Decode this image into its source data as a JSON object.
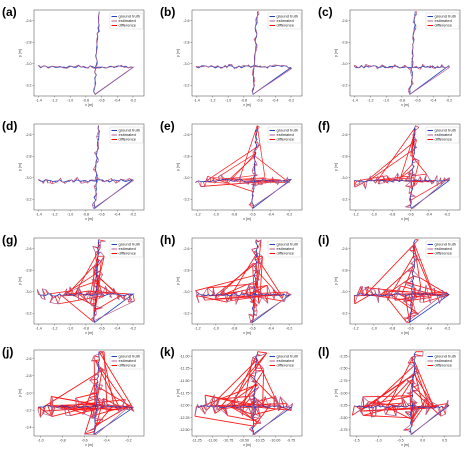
{
  "chart_data": [
    {
      "panel": "(a)",
      "type": "line",
      "title": "",
      "xlabel": "x [m]",
      "ylabel": "y [m]",
      "xticks": [
        "-1.4",
        "-1.2",
        "-1.0",
        "-0.8",
        "-0.6",
        "-0.4",
        "-0.2"
      ],
      "yticks": [
        "-2.6",
        "-2.8",
        "-3.0",
        "-3.2"
      ],
      "xlim": [
        -1.45,
        -0.15
      ],
      "ylim": [
        -3.25,
        -2.5
      ],
      "legend": "top-right",
      "diff_amount": 0.1,
      "series": [
        {
          "name": "ground truth",
          "color": "#1f3fbf"
        },
        {
          "name": "estimated",
          "color": "#b06090"
        },
        {
          "name": "difference",
          "color": "#ff0000"
        }
      ]
    },
    {
      "panel": "(b)",
      "type": "line",
      "title": "",
      "xlabel": "x [m]",
      "ylabel": "y [m]",
      "xticks": [
        "-1.4",
        "-1.2",
        "-1.0",
        "-0.8",
        "-0.6",
        "-0.4",
        "-0.2"
      ],
      "yticks": [
        "-2.6",
        "-2.8",
        "-3.0",
        "-3.2"
      ],
      "xlim": [
        -1.45,
        -0.15
      ],
      "ylim": [
        -3.25,
        -2.5
      ],
      "legend": "top-right",
      "diff_amount": 0.15,
      "series": [
        {
          "name": "ground truth",
          "color": "#1f3fbf"
        },
        {
          "name": "estimated",
          "color": "#b06090"
        },
        {
          "name": "difference",
          "color": "#ff0000"
        }
      ]
    },
    {
      "panel": "(c)",
      "type": "line",
      "title": "",
      "xlabel": "x [m]",
      "ylabel": "y [m]",
      "xticks": [
        "-1.4",
        "-1.2",
        "-1.0",
        "-0.8",
        "-0.6",
        "-0.4",
        "-0.2"
      ],
      "yticks": [
        "-2.6",
        "-2.8",
        "-3.0",
        "-3.2"
      ],
      "xlim": [
        -1.45,
        -0.15
      ],
      "ylim": [
        -3.25,
        -2.5
      ],
      "legend": "top-right",
      "diff_amount": 0.2,
      "series": [
        {
          "name": "ground truth",
          "color": "#1f3fbf"
        },
        {
          "name": "estimated",
          "color": "#b06090"
        },
        {
          "name": "difference",
          "color": "#ff0000"
        }
      ]
    },
    {
      "panel": "(d)",
      "type": "line",
      "title": "",
      "xlabel": "x [m]",
      "ylabel": "y [m]",
      "xticks": [
        "-1.4",
        "-1.2",
        "-1.0",
        "-0.8",
        "-0.6",
        "-0.4",
        "-0.2"
      ],
      "yticks": [
        "-2.6",
        "-2.8",
        "-3.0",
        "-3.2"
      ],
      "xlim": [
        -1.45,
        -0.15
      ],
      "ylim": [
        -3.25,
        -2.5
      ],
      "legend": "top-right",
      "diff_amount": 0.25,
      "series": [
        {
          "name": "ground truth",
          "color": "#1f3fbf"
        },
        {
          "name": "estimated",
          "color": "#b06090"
        },
        {
          "name": "difference",
          "color": "#ff0000"
        }
      ]
    },
    {
      "panel": "(e)",
      "type": "line",
      "title": "",
      "xlabel": "x [m]",
      "ylabel": "y [m]",
      "xticks": [
        "-1.2",
        "-1.0",
        "-0.8",
        "-0.6",
        "-0.4",
        "-0.2"
      ],
      "yticks": [
        "-2.6",
        "-2.8",
        "-3.0",
        "-3.2"
      ],
      "xlim": [
        -1.3,
        -0.1
      ],
      "ylim": [
        -3.25,
        -2.5
      ],
      "legend": "top-right",
      "diff_amount": 0.5,
      "series": [
        {
          "name": "ground truth",
          "color": "#1f3fbf"
        },
        {
          "name": "estimated",
          "color": "#b06090"
        },
        {
          "name": "difference",
          "color": "#ff0000"
        }
      ]
    },
    {
      "panel": "(f)",
      "type": "line",
      "title": "",
      "xlabel": "x [m]",
      "ylabel": "y [m]",
      "xticks": [
        "-1.2",
        "-1.0",
        "-0.8",
        "-0.6",
        "-0.4",
        "-0.2"
      ],
      "yticks": [
        "-2.6",
        "-2.8",
        "-3.0",
        "-3.2"
      ],
      "xlim": [
        -1.3,
        -0.1
      ],
      "ylim": [
        -3.25,
        -2.5
      ],
      "legend": "top-right",
      "diff_amount": 0.65,
      "series": [
        {
          "name": "ground truth",
          "color": "#1f3fbf"
        },
        {
          "name": "estimated",
          "color": "#b06090"
        },
        {
          "name": "difference",
          "color": "#ff0000"
        }
      ]
    },
    {
      "panel": "(g)",
      "type": "line",
      "title": "",
      "xlabel": "x [m]",
      "ylabel": "y [m]",
      "xticks": [
        "-1.4",
        "-1.2",
        "-1.0",
        "-0.8",
        "-0.6",
        "-0.4",
        "-0.2"
      ],
      "yticks": [
        "-2.6",
        "-2.8",
        "-3.0",
        "-3.2"
      ],
      "xlim": [
        -1.45,
        -0.15
      ],
      "ylim": [
        -3.25,
        -2.5
      ],
      "legend": "top-right",
      "diff_amount": 0.8,
      "series": [
        {
          "name": "ground truth",
          "color": "#1f3fbf"
        },
        {
          "name": "estimated",
          "color": "#b06090"
        },
        {
          "name": "difference",
          "color": "#ff0000"
        }
      ]
    },
    {
      "panel": "(h)",
      "type": "line",
      "title": "",
      "xlabel": "x [m]",
      "ylabel": "y [m]",
      "xticks": [
        "-1.2",
        "-1.0",
        "-0.8",
        "-0.6",
        "-0.4",
        "-0.2"
      ],
      "yticks": [
        "-2.6",
        "-2.8",
        "-3.0",
        "-3.2"
      ],
      "xlim": [
        -1.3,
        -0.1
      ],
      "ylim": [
        -3.25,
        -2.5
      ],
      "legend": "top-right",
      "diff_amount": 0.85,
      "series": [
        {
          "name": "ground truth",
          "color": "#1f3fbf"
        },
        {
          "name": "estimated",
          "color": "#b06090"
        },
        {
          "name": "difference",
          "color": "#ff0000"
        }
      ]
    },
    {
      "panel": "(i)",
      "type": "line",
      "title": "",
      "xlabel": "x [m]",
      "ylabel": "y [m]",
      "xticks": [
        "-1.2",
        "-1.0",
        "-0.8",
        "-0.6",
        "-0.4",
        "-0.2"
      ],
      "yticks": [
        "-2.6",
        "-2.8",
        "-3.0",
        "-3.2"
      ],
      "xlim": [
        -1.3,
        -0.1
      ],
      "ylim": [
        -3.25,
        -2.5
      ],
      "legend": "top-right",
      "diff_amount": 0.9,
      "series": [
        {
          "name": "ground truth",
          "color": "#1f3fbf"
        },
        {
          "name": "estimated",
          "color": "#b06090"
        },
        {
          "name": "difference",
          "color": "#ff0000"
        }
      ]
    },
    {
      "panel": "(j)",
      "type": "line",
      "title": "",
      "xlabel": "x [m]",
      "ylabel": "y [m]",
      "xticks": [
        "-1.0",
        "-0.8",
        "-0.6",
        "-0.4",
        "-0.2"
      ],
      "yticks": [
        "-2.6",
        "-2.8",
        "-3.0",
        "-3.2",
        "-3.4"
      ],
      "xlim": [
        -1.1,
        -0.1
      ],
      "ylim": [
        -3.5,
        -2.5
      ],
      "legend": "top-right",
      "diff_amount": 1.0,
      "series": [
        {
          "name": "ground truth",
          "color": "#1f3fbf"
        },
        {
          "name": "estimated",
          "color": "#b06090"
        },
        {
          "name": "difference",
          "color": "#ff0000"
        }
      ]
    },
    {
      "panel": "(k)",
      "type": "line",
      "title": "",
      "xlabel": "x [m]",
      "ylabel": "y [m]",
      "xticks": [
        "-11.25",
        "-11.00",
        "-10.75",
        "-10.50",
        "-10.25",
        "-10.00",
        "-9.75"
      ],
      "yticks": [
        "-11.00",
        "-11.25",
        "-11.50",
        "-11.75",
        "-12.00",
        "-12.25",
        "-12.50"
      ],
      "xlim": [
        -11.3,
        -9.7
      ],
      "ylim": [
        -12.55,
        -10.9
      ],
      "legend": "top-right",
      "diff_amount": 1.0,
      "series": [
        {
          "name": "ground truth",
          "color": "#1f3fbf"
        },
        {
          "name": "estimated",
          "color": "#b06090"
        },
        {
          "name": "difference",
          "color": "#ff0000"
        }
      ]
    },
    {
      "panel": "(l)",
      "type": "line",
      "title": "",
      "xlabel": "x [m]",
      "ylabel": "y [m]",
      "xticks": [
        "-1.5",
        "-1.0",
        "-0.5",
        "0.0",
        "0.5"
      ],
      "yticks": [
        "-2.25",
        "-2.50",
        "-2.75",
        "-3.00",
        "-3.25",
        "-3.50",
        "-3.75"
      ],
      "xlim": [
        -1.8,
        0.7
      ],
      "ylim": [
        -3.8,
        -2.2
      ],
      "legend": "top-right",
      "diff_amount": 1.0,
      "series": [
        {
          "name": "ground truth",
          "color": "#1f3fbf"
        },
        {
          "name": "estimated",
          "color": "#b06090"
        },
        {
          "name": "difference",
          "color": "#ff0000"
        }
      ]
    }
  ]
}
